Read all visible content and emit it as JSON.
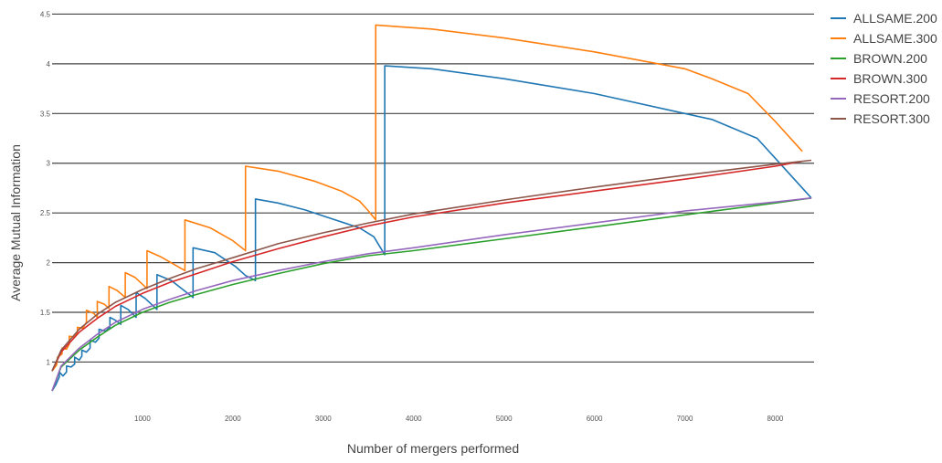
{
  "chart_data": {
    "type": "line",
    "title": "",
    "xlabel": "Number of mergers performed",
    "ylabel": "Average Mutual Information",
    "xlim": [
      0,
      8430
    ],
    "ylim": [
      0.6,
      4.55
    ],
    "grid": true,
    "legend_position": "right",
    "x_ticks": [
      {
        "value": 1000,
        "label": "1000"
      },
      {
        "value": 2000,
        "label": "2000"
      },
      {
        "value": 3000,
        "label": "3000"
      },
      {
        "value": 4000,
        "label": "4000"
      },
      {
        "value": 5000,
        "label": "5000"
      },
      {
        "value": 6000,
        "label": "6000"
      },
      {
        "value": 7000,
        "label": "7000"
      },
      {
        "value": 8000,
        "label": "8000"
      }
    ],
    "y_ticks": [
      {
        "value": 1,
        "label": "1"
      },
      {
        "value": 1.5,
        "label": "1.5"
      },
      {
        "value": 2,
        "label": "2"
      },
      {
        "value": 2.5,
        "label": "2.5"
      },
      {
        "value": 3,
        "label": "3"
      },
      {
        "value": 3.5,
        "label": "3.5"
      },
      {
        "value": 4,
        "label": "4"
      },
      {
        "value": 4.5,
        "label": "4.5"
      }
    ],
    "series": [
      {
        "name": "ALLSAME.200",
        "color": "#1f77b4",
        "points": [
          [
            0,
            0.71
          ],
          [
            40,
            0.77
          ],
          [
            80,
            0.85
          ],
          [
            80,
            0.9
          ],
          [
            120,
            0.86
          ],
          [
            160,
            0.9
          ],
          [
            160,
            0.96
          ],
          [
            210,
            0.95
          ],
          [
            250,
            0.98
          ],
          [
            250,
            1.05
          ],
          [
            300,
            1.02
          ],
          [
            330,
            1.06
          ],
          [
            330,
            1.12
          ],
          [
            380,
            1.1
          ],
          [
            420,
            1.14
          ],
          [
            420,
            1.22
          ],
          [
            480,
            1.2
          ],
          [
            520,
            1.24
          ],
          [
            520,
            1.33
          ],
          [
            590,
            1.31
          ],
          [
            640,
            1.35
          ],
          [
            640,
            1.45
          ],
          [
            700,
            1.42
          ],
          [
            760,
            1.38
          ],
          [
            760,
            1.57
          ],
          [
            840,
            1.53
          ],
          [
            930,
            1.45
          ],
          [
            930,
            1.7
          ],
          [
            1030,
            1.64
          ],
          [
            1160,
            1.53
          ],
          [
            1160,
            1.88
          ],
          [
            1320,
            1.82
          ],
          [
            1560,
            1.65
          ],
          [
            1560,
            2.15
          ],
          [
            1800,
            2.1
          ],
          [
            2030,
            1.96
          ],
          [
            2140,
            1.87
          ],
          [
            2250,
            1.82
          ],
          [
            2250,
            2.64
          ],
          [
            2500,
            2.6
          ],
          [
            2800,
            2.53
          ],
          [
            3100,
            2.44
          ],
          [
            3400,
            2.35
          ],
          [
            3560,
            2.26
          ],
          [
            3680,
            2.08
          ],
          [
            3680,
            3.98
          ],
          [
            4200,
            3.95
          ],
          [
            5000,
            3.85
          ],
          [
            6000,
            3.7
          ],
          [
            7000,
            3.5
          ],
          [
            7300,
            3.44
          ],
          [
            7800,
            3.25
          ],
          [
            8100,
            2.95
          ],
          [
            8400,
            2.65
          ]
        ]
      },
      {
        "name": "ALLSAME.300",
        "color": "#ff7f0e",
        "points": [
          [
            0,
            0.91
          ],
          [
            50,
            0.97
          ],
          [
            60,
            1.03
          ],
          [
            60,
            1.05
          ],
          [
            110,
            1.08
          ],
          [
            110,
            1.14
          ],
          [
            160,
            1.13
          ],
          [
            190,
            1.18
          ],
          [
            190,
            1.26
          ],
          [
            250,
            1.25
          ],
          [
            280,
            1.3
          ],
          [
            280,
            1.35
          ],
          [
            340,
            1.34
          ],
          [
            380,
            1.4
          ],
          [
            380,
            1.52
          ],
          [
            460,
            1.49
          ],
          [
            500,
            1.45
          ],
          [
            500,
            1.61
          ],
          [
            580,
            1.58
          ],
          [
            630,
            1.54
          ],
          [
            630,
            1.76
          ],
          [
            720,
            1.72
          ],
          [
            810,
            1.65
          ],
          [
            810,
            1.9
          ],
          [
            920,
            1.85
          ],
          [
            1050,
            1.74
          ],
          [
            1050,
            2.12
          ],
          [
            1200,
            2.06
          ],
          [
            1470,
            1.92
          ],
          [
            1470,
            2.43
          ],
          [
            1750,
            2.35
          ],
          [
            2000,
            2.22
          ],
          [
            2140,
            2.12
          ],
          [
            2140,
            2.97
          ],
          [
            2500,
            2.92
          ],
          [
            2900,
            2.82
          ],
          [
            3200,
            2.72
          ],
          [
            3400,
            2.62
          ],
          [
            3500,
            2.52
          ],
          [
            3580,
            2.43
          ],
          [
            3580,
            4.39
          ],
          [
            4200,
            4.35
          ],
          [
            5000,
            4.26
          ],
          [
            6000,
            4.12
          ],
          [
            7000,
            3.95
          ],
          [
            7300,
            3.85
          ],
          [
            7700,
            3.7
          ],
          [
            8000,
            3.42
          ],
          [
            8300,
            3.12
          ]
        ]
      },
      {
        "name": "BROWN.200",
        "color": "#2ca02c",
        "points": [
          [
            0,
            0.71
          ],
          [
            100,
            0.95
          ],
          [
            300,
            1.12
          ],
          [
            500,
            1.25
          ],
          [
            700,
            1.37
          ],
          [
            1000,
            1.5
          ],
          [
            1300,
            1.6
          ],
          [
            1600,
            1.68
          ],
          [
            2000,
            1.78
          ],
          [
            2500,
            1.89
          ],
          [
            3000,
            1.99
          ],
          [
            3500,
            2.07
          ],
          [
            4000,
            2.12
          ],
          [
            5000,
            2.24
          ],
          [
            6000,
            2.36
          ],
          [
            7000,
            2.48
          ],
          [
            8000,
            2.6
          ],
          [
            8400,
            2.65
          ]
        ]
      },
      {
        "name": "BROWN.300",
        "color": "#d62728",
        "points": [
          [
            0,
            0.91
          ],
          [
            100,
            1.1
          ],
          [
            300,
            1.3
          ],
          [
            500,
            1.44
          ],
          [
            700,
            1.56
          ],
          [
            1000,
            1.69
          ],
          [
            1300,
            1.8
          ],
          [
            1600,
            1.89
          ],
          [
            2000,
            2.01
          ],
          [
            2500,
            2.14
          ],
          [
            3000,
            2.26
          ],
          [
            3500,
            2.37
          ],
          [
            4000,
            2.46
          ],
          [
            5000,
            2.6
          ],
          [
            6000,
            2.72
          ],
          [
            7000,
            2.84
          ],
          [
            8000,
            2.97
          ],
          [
            8300,
            3.02
          ]
        ]
      },
      {
        "name": "RESORT.200",
        "color": "#9467bd",
        "points": [
          [
            0,
            0.71
          ],
          [
            100,
            0.96
          ],
          [
            300,
            1.14
          ],
          [
            500,
            1.28
          ],
          [
            700,
            1.4
          ],
          [
            1000,
            1.53
          ],
          [
            1300,
            1.63
          ],
          [
            1600,
            1.72
          ],
          [
            2000,
            1.82
          ],
          [
            2500,
            1.92
          ],
          [
            3000,
            2.01
          ],
          [
            3500,
            2.09
          ],
          [
            4000,
            2.15
          ],
          [
            5000,
            2.28
          ],
          [
            6000,
            2.4
          ],
          [
            7000,
            2.52
          ],
          [
            8000,
            2.61
          ],
          [
            8400,
            2.65
          ]
        ]
      },
      {
        "name": "RESORT.300",
        "color": "#8c564b",
        "points": [
          [
            0,
            0.91
          ],
          [
            100,
            1.12
          ],
          [
            300,
            1.33
          ],
          [
            500,
            1.48
          ],
          [
            700,
            1.6
          ],
          [
            1000,
            1.73
          ],
          [
            1300,
            1.84
          ],
          [
            1600,
            1.94
          ],
          [
            2000,
            2.05
          ],
          [
            2500,
            2.19
          ],
          [
            3000,
            2.3
          ],
          [
            3500,
            2.4
          ],
          [
            4000,
            2.49
          ],
          [
            5000,
            2.63
          ],
          [
            6000,
            2.76
          ],
          [
            7000,
            2.88
          ],
          [
            8000,
            2.99
          ],
          [
            8400,
            3.03
          ]
        ]
      }
    ]
  }
}
